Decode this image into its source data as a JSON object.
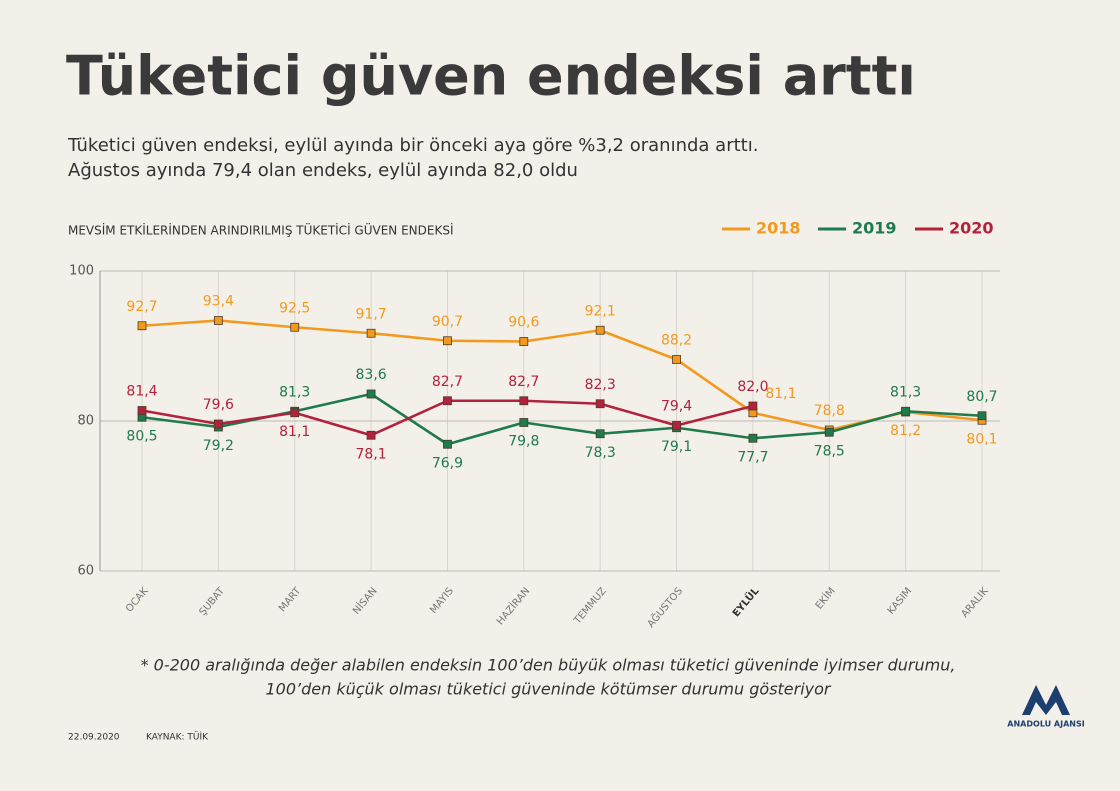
{
  "chart_data": {
    "type": "line",
    "title": "Tüketici güven endeksi arttı",
    "subtitle": [
      "Tüketici güven endeksi, eylül ayında bir önceki aya göre %3,2 oranında arttı.",
      "Ağustos ayında 79,4 olan endeks, eylül ayında 82,0 oldu"
    ],
    "chart_title": "MEVSİM ETKİLERİNDEN ARINDIRILMIŞ TÜKETİCİ GÜVEN ENDEKSİ",
    "categories": [
      "OCAK",
      "ŞUBAT",
      "MART",
      "NİSAN",
      "MAYIS",
      "HAZİRAN",
      "TEMMUZ",
      "AĞUSTOS",
      "EYLÜL",
      "EKİM",
      "KASIM",
      "ARALIK"
    ],
    "series": [
      {
        "name": "2018",
        "color": "#f39a1e",
        "values": [
          92.7,
          93.4,
          92.5,
          91.7,
          90.7,
          90.6,
          92.1,
          88.2,
          81.1,
          78.8,
          81.2,
          80.1
        ],
        "value_labels": [
          "92,7",
          "93,4",
          "92,5",
          "91,7",
          "90,7",
          "90,6",
          "92,1",
          "88,2",
          "81,1",
          "78,8",
          "81,2",
          "80,1"
        ]
      },
      {
        "name": "2019",
        "color": "#1f7a4c",
        "values": [
          80.5,
          79.2,
          81.3,
          83.6,
          76.9,
          79.8,
          78.3,
          79.1,
          77.7,
          78.5,
          81.3,
          80.7
        ],
        "value_labels": [
          "80,5",
          "79,2",
          "81,3",
          "83,6",
          "76,9",
          "79,8",
          "78,3",
          "79,1",
          "77,7",
          "78,5",
          "81,3",
          "80,7"
        ]
      },
      {
        "name": "2020",
        "color": "#b3223c",
        "values": [
          81.4,
          79.6,
          81.1,
          78.1,
          82.7,
          82.7,
          82.3,
          79.4,
          82.0,
          null,
          null,
          null
        ],
        "value_labels": [
          "81,4",
          "79,6",
          "81,1",
          "78,1",
          "82,7",
          "82,7",
          "82,3",
          "79,4",
          "82,0",
          null,
          null,
          null
        ]
      }
    ],
    "ylim": [
      60,
      100
    ],
    "yticks": [
      60,
      80,
      100
    ],
    "grid": true,
    "legend": "top-right",
    "footnote": [
      "* 0-200 aralığında değer alabilen endeksin 100’den büyük olması tüketici güveninde iyimser durumu,",
      "100’den küçük olması tüketici güveninde kötümser durumu gösteriyor"
    ],
    "date": "22.09.2020",
    "source": "KAYNAK: TÜİK",
    "logo": "ANADOLU AJANSI"
  }
}
